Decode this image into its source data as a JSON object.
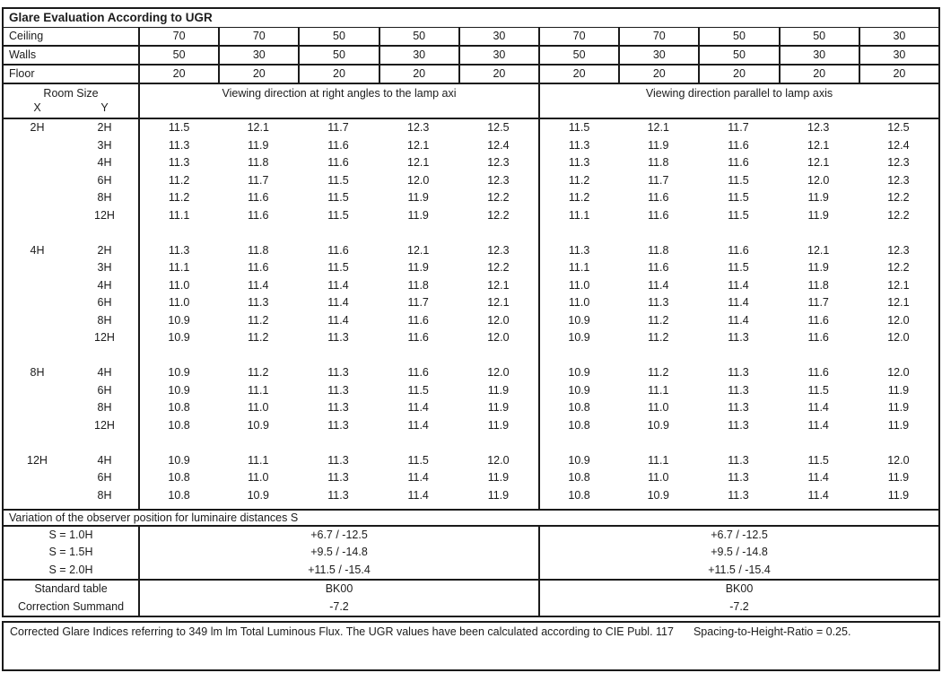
{
  "title": "Glare Evaluation According to UGR",
  "surfaces": [
    {
      "label": "Ceiling",
      "values": [
        "70",
        "70",
        "50",
        "50",
        "30",
        "70",
        "70",
        "50",
        "50",
        "30"
      ]
    },
    {
      "label": "Walls",
      "values": [
        "50",
        "30",
        "50",
        "30",
        "30",
        "50",
        "30",
        "50",
        "30",
        "30"
      ]
    },
    {
      "label": "Floor",
      "values": [
        "20",
        "20",
        "20",
        "20",
        "20",
        "20",
        "20",
        "20",
        "20",
        "20"
      ]
    }
  ],
  "header": {
    "room_size_label": "Room Size",
    "x_label": "X",
    "y_label": "Y",
    "left_section_label": "Viewing direction at right angles to the lamp axi",
    "right_section_label": "Viewing direction parallel to lamp axis"
  },
  "body_groups": [
    {
      "x": "2H",
      "rows": [
        {
          "y": "2H",
          "left": [
            "11.5",
            "12.1",
            "11.7",
            "12.3",
            "12.5"
          ],
          "right": [
            "11.5",
            "12.1",
            "11.7",
            "12.3",
            "12.5"
          ]
        },
        {
          "y": "3H",
          "left": [
            "11.3",
            "11.9",
            "11.6",
            "12.1",
            "12.4"
          ],
          "right": [
            "11.3",
            "11.9",
            "11.6",
            "12.1",
            "12.4"
          ]
        },
        {
          "y": "4H",
          "left": [
            "11.3",
            "11.8",
            "11.6",
            "12.1",
            "12.3"
          ],
          "right": [
            "11.3",
            "11.8",
            "11.6",
            "12.1",
            "12.3"
          ]
        },
        {
          "y": "6H",
          "left": [
            "11.2",
            "11.7",
            "11.5",
            "12.0",
            "12.3"
          ],
          "right": [
            "11.2",
            "11.7",
            "11.5",
            "12.0",
            "12.3"
          ]
        },
        {
          "y": "8H",
          "left": [
            "11.2",
            "11.6",
            "11.5",
            "11.9",
            "12.2"
          ],
          "right": [
            "11.2",
            "11.6",
            "11.5",
            "11.9",
            "12.2"
          ]
        },
        {
          "y": "12H",
          "left": [
            "11.1",
            "11.6",
            "11.5",
            "11.9",
            "12.2"
          ],
          "right": [
            "11.1",
            "11.6",
            "11.5",
            "11.9",
            "12.2"
          ]
        }
      ]
    },
    {
      "x": "4H",
      "rows": [
        {
          "y": "2H",
          "left": [
            "11.3",
            "11.8",
            "11.6",
            "12.1",
            "12.3"
          ],
          "right": [
            "11.3",
            "11.8",
            "11.6",
            "12.1",
            "12.3"
          ]
        },
        {
          "y": "3H",
          "left": [
            "11.1",
            "11.6",
            "11.5",
            "11.9",
            "12.2"
          ],
          "right": [
            "11.1",
            "11.6",
            "11.5",
            "11.9",
            "12.2"
          ]
        },
        {
          "y": "4H",
          "left": [
            "11.0",
            "11.4",
            "11.4",
            "11.8",
            "12.1"
          ],
          "right": [
            "11.0",
            "11.4",
            "11.4",
            "11.8",
            "12.1"
          ]
        },
        {
          "y": "6H",
          "left": [
            "11.0",
            "11.3",
            "11.4",
            "11.7",
            "12.1"
          ],
          "right": [
            "11.0",
            "11.3",
            "11.4",
            "11.7",
            "12.1"
          ]
        },
        {
          "y": "8H",
          "left": [
            "10.9",
            "11.2",
            "11.4",
            "11.6",
            "12.0"
          ],
          "right": [
            "10.9",
            "11.2",
            "11.4",
            "11.6",
            "12.0"
          ]
        },
        {
          "y": "12H",
          "left": [
            "10.9",
            "11.2",
            "11.3",
            "11.6",
            "12.0"
          ],
          "right": [
            "10.9",
            "11.2",
            "11.3",
            "11.6",
            "12.0"
          ]
        }
      ]
    },
    {
      "x": "8H",
      "rows": [
        {
          "y": "4H",
          "left": [
            "10.9",
            "11.2",
            "11.3",
            "11.6",
            "12.0"
          ],
          "right": [
            "10.9",
            "11.2",
            "11.3",
            "11.6",
            "12.0"
          ]
        },
        {
          "y": "6H",
          "left": [
            "10.9",
            "11.1",
            "11.3",
            "11.5",
            "11.9"
          ],
          "right": [
            "10.9",
            "11.1",
            "11.3",
            "11.5",
            "11.9"
          ]
        },
        {
          "y": "8H",
          "left": [
            "10.8",
            "11.0",
            "11.3",
            "11.4",
            "11.9"
          ],
          "right": [
            "10.8",
            "11.0",
            "11.3",
            "11.4",
            "11.9"
          ]
        },
        {
          "y": "12H",
          "left": [
            "10.8",
            "10.9",
            "11.3",
            "11.4",
            "11.9"
          ],
          "right": [
            "10.8",
            "10.9",
            "11.3",
            "11.4",
            "11.9"
          ]
        }
      ]
    },
    {
      "x": "12H",
      "rows": [
        {
          "y": "4H",
          "left": [
            "10.9",
            "11.1",
            "11.3",
            "11.5",
            "12.0"
          ],
          "right": [
            "10.9",
            "11.1",
            "11.3",
            "11.5",
            "12.0"
          ]
        },
        {
          "y": "6H",
          "left": [
            "10.8",
            "11.0",
            "11.3",
            "11.4",
            "11.9"
          ],
          "right": [
            "10.8",
            "11.0",
            "11.3",
            "11.4",
            "11.9"
          ]
        },
        {
          "y": "8H",
          "left": [
            "10.8",
            "10.9",
            "11.3",
            "11.4",
            "11.9"
          ],
          "right": [
            "10.8",
            "10.9",
            "11.3",
            "11.4",
            "11.9"
          ]
        }
      ]
    }
  ],
  "variation": {
    "label": "Variation of the observer position for luminaire distances S",
    "rows": [
      {
        "label": "S = 1.0H",
        "left": "+6.7 / -12.5",
        "right": "+6.7 / -12.5"
      },
      {
        "label": "S = 1.5H",
        "left": "+9.5 / -14.8",
        "right": "+9.5 / -14.8"
      },
      {
        "label": "S = 2.0H",
        "left": "+11.5 / -15.4",
        "right": "+11.5 / -15.4"
      }
    ]
  },
  "summary": {
    "rows": [
      {
        "label": "Standard table",
        "left": "BK00",
        "right": "BK00"
      },
      {
        "label": "Correction Summand",
        "left": "-7.2",
        "right": "-7.2"
      }
    ]
  },
  "footer": {
    "text1": "Corrected Glare Indices referring to 349 lm lm Total Luminous Flux. The UGR values have been calculated according to CIE Publ. 117",
    "text2": "Spacing-to-Height-Ratio = 0.25."
  }
}
